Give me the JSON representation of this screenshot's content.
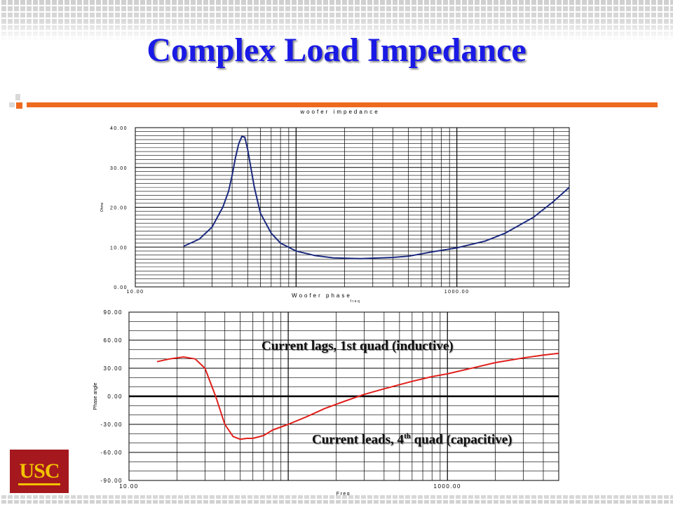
{
  "slide": {
    "title": "Complex Load Impedance",
    "logo_text": "USC",
    "colors": {
      "title": "#1a1ae6",
      "accent_bar": "#ee6a1f",
      "logo_bg": "#a5181e",
      "logo_text": "#f2c200"
    }
  },
  "annotations": {
    "lags": "Current lags, 1st quad (inductive)",
    "leads_prefix": "Current leads, 4",
    "leads_sup": "th",
    "leads_suffix": " quad (capacitive)"
  },
  "chart_data": [
    {
      "type": "line",
      "title": "woofer impedance",
      "xlabel": "freq",
      "ylabel": "Ohms",
      "x_scale": "log",
      "xlim": [
        10,
        5000
      ],
      "ylim": [
        0,
        40
      ],
      "y_ticks": [
        "0.00",
        "10.00",
        "20.00",
        "30.00",
        "40.00"
      ],
      "x_ticks": [
        "10.00",
        "1000.00"
      ],
      "grid": true,
      "line_color": "#1c2a80",
      "series": [
        {
          "x": [
            20,
            25,
            30,
            35,
            38,
            40,
            42,
            44,
            46,
            48,
            50,
            55,
            60,
            70,
            80,
            100,
            130,
            170,
            250,
            400,
            500,
            700,
            1000,
            1500,
            2000,
            3000,
            4000,
            5000
          ],
          "values": [
            10.2,
            12.0,
            15.0,
            20.0,
            24.0,
            28.0,
            32.5,
            36.0,
            37.8,
            37.6,
            34.5,
            25.0,
            18.5,
            13.5,
            11.0,
            9.0,
            7.9,
            7.3,
            7.1,
            7.4,
            7.7,
            8.8,
            9.8,
            11.5,
            13.5,
            17.5,
            21.5,
            25.0
          ]
        }
      ]
    },
    {
      "type": "line",
      "title": "Woofer phase",
      "xlabel": "Freq",
      "ylabel": "Phase angle",
      "x_scale": "log",
      "xlim": [
        10,
        5000
      ],
      "ylim": [
        -90,
        90
      ],
      "y_ticks": [
        "90.00",
        "60.00",
        "30.00",
        "0.00",
        "-30.00",
        "-60.00",
        "-90.00"
      ],
      "x_ticks": [
        "10.00",
        "1000.00"
      ],
      "grid": true,
      "line_color": "#e0201c",
      "series": [
        {
          "x": [
            15,
            18,
            22,
            26,
            30,
            35,
            40,
            45,
            50,
            55,
            60,
            70,
            80,
            100,
            130,
            170,
            220,
            300,
            400,
            600,
            800,
            1000,
            1500,
            2000,
            3000,
            4000,
            5000
          ],
          "values": [
            37,
            40,
            42,
            40,
            30,
            0,
            -30,
            -43,
            -46,
            -45,
            -45,
            -42,
            -36,
            -30,
            -22,
            -13,
            -6,
            2,
            8,
            16,
            21,
            24,
            31,
            36,
            41,
            44,
            46
          ]
        }
      ]
    }
  ]
}
